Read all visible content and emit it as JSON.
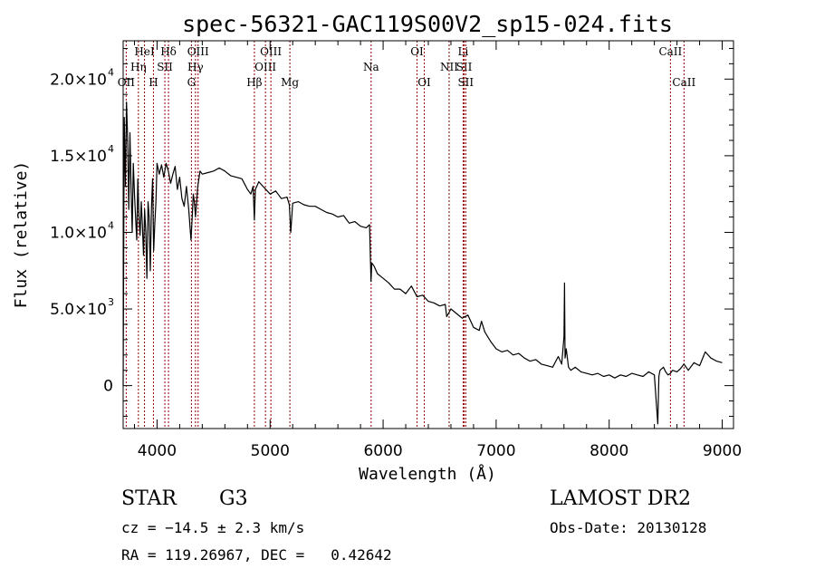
{
  "chart_data": {
    "type": "line",
    "title": "spec-56321-GAC119S00V2_sp15-024.fits",
    "xlabel": "Wavelength (Å)",
    "ylabel": "Flux (relative)",
    "xlim": [
      3700,
      9100
    ],
    "ylim": [
      -2800,
      22500
    ],
    "xticks": [
      4000,
      5000,
      6000,
      7000,
      8000,
      9000
    ],
    "xtick_labels": [
      "4000",
      "5000",
      "6000",
      "7000",
      "8000",
      "9000"
    ],
    "yticks": [
      0,
      5000,
      10000,
      15000,
      20000
    ],
    "ytick_labels": [
      {
        "base": "0",
        "exp": ""
      },
      {
        "base": "5.0×10",
        "exp": "3"
      },
      {
        "base": "1.0×10",
        "exp": "4"
      },
      {
        "base": "1.5×10",
        "exp": "4"
      },
      {
        "base": "2.0×10",
        "exp": "4"
      }
    ],
    "line_color": "#000000",
    "marker_color": "#8b0000",
    "spectrum": {
      "x": [
        3700,
        3710,
        3720,
        3730,
        3740,
        3750,
        3760,
        3770,
        3780,
        3790,
        3800,
        3810,
        3820,
        3830,
        3840,
        3850,
        3860,
        3870,
        3880,
        3890,
        3900,
        3910,
        3920,
        3930,
        3940,
        3950,
        3960,
        3970,
        3980,
        3990,
        4000,
        4020,
        4040,
        4060,
        4080,
        4100,
        4120,
        4140,
        4160,
        4180,
        4200,
        4220,
        4240,
        4260,
        4280,
        4300,
        4310,
        4320,
        4330,
        4340,
        4360,
        4380,
        4400,
        4450,
        4500,
        4550,
        4600,
        4650,
        4700,
        4750,
        4800,
        4830,
        4850,
        4861,
        4870,
        4900,
        4950,
        5000,
        5050,
        5100,
        5150,
        5170,
        5183,
        5200,
        5250,
        5300,
        5350,
        5400,
        5450,
        5500,
        5550,
        5600,
        5650,
        5700,
        5750,
        5800,
        5850,
        5880,
        5893,
        5900,
        5920,
        5950,
        6000,
        6050,
        6100,
        6150,
        6200,
        6250,
        6300,
        6350,
        6400,
        6450,
        6500,
        6550,
        6563,
        6600,
        6650,
        6700,
        6750,
        6800,
        6850,
        6870,
        6900,
        6950,
        7000,
        7050,
        7100,
        7150,
        7200,
        7250,
        7300,
        7350,
        7400,
        7450,
        7500,
        7550,
        7580,
        7600,
        7605,
        7610,
        7620,
        7640,
        7660,
        7700,
        7750,
        7800,
        7850,
        7900,
        7950,
        8000,
        8050,
        8100,
        8150,
        8200,
        8250,
        8300,
        8350,
        8400,
        8430,
        8440,
        8445,
        8450,
        8480,
        8500,
        8520,
        8542,
        8560,
        8600,
        8630,
        8662,
        8700,
        8750,
        8800,
        8850,
        8900,
        8950,
        9000
      ],
      "y": [
        0,
        17500,
        13000,
        18500,
        16000,
        11500,
        16500,
        13000,
        10000,
        14500,
        12500,
        11000,
        9500,
        13500,
        11000,
        9800,
        12000,
        10500,
        8500,
        11500,
        10000,
        7000,
        12000,
        11000,
        7500,
        11500,
        13500,
        8800,
        10500,
        12000,
        14500,
        13800,
        14400,
        13600,
        14500,
        14000,
        13200,
        13800,
        14300,
        12800,
        13600,
        12200,
        11700,
        13000,
        11500,
        9500,
        10800,
        12500,
        12000,
        11000,
        13000,
        14000,
        13800,
        13900,
        14000,
        14200,
        14000,
        13700,
        13600,
        13500,
        12800,
        12500,
        13000,
        10800,
        12800,
        13300,
        12900,
        12500,
        12700,
        12200,
        12300,
        11800,
        10000,
        11900,
        12000,
        11800,
        11700,
        11700,
        11500,
        11300,
        11200,
        11000,
        11100,
        10600,
        10700,
        10400,
        10300,
        10500,
        6800,
        8000,
        7800,
        7300,
        7000,
        6700,
        6300,
        6300,
        6000,
        6500,
        5800,
        5900,
        5500,
        5400,
        5200,
        5300,
        4500,
        5000,
        4700,
        4400,
        4600,
        3800,
        3600,
        4200,
        3500,
        2900,
        2400,
        2200,
        2300,
        2000,
        2100,
        1800,
        1600,
        1700,
        1400,
        1300,
        1200,
        1900,
        1400,
        3200,
        6700,
        1800,
        2400,
        1200,
        1000,
        1200,
        900,
        800,
        700,
        800,
        600,
        700,
        500,
        700,
        600,
        800,
        700,
        600,
        900,
        700,
        -2500,
        600,
        800,
        1000,
        1200,
        900,
        700,
        800,
        1000,
        900,
        1100,
        1400,
        1000,
        1500,
        1300,
        2200,
        1800,
        1600,
        1500
      ]
    },
    "line_markers": [
      {
        "label": "OII",
        "wave": 3727,
        "row": 3
      },
      {
        "label": "Hη",
        "wave": 3835,
        "row": 2
      },
      {
        "label": "HeI",
        "wave": 3889,
        "row": 1
      },
      {
        "label": "H",
        "wave": 3968,
        "row": 3
      },
      {
        "label": "SII",
        "wave": 4069,
        "row": 2
      },
      {
        "label": "Hδ",
        "wave": 4101,
        "row": 1
      },
      {
        "label": "G",
        "wave": 4304,
        "row": 3
      },
      {
        "label": "Hγ",
        "wave": 4340,
        "row": 2
      },
      {
        "label": "OIII",
        "wave": 4363,
        "row": 1
      },
      {
        "label": "Hβ",
        "wave": 4861,
        "row": 3
      },
      {
        "label": "OIII",
        "wave": 4959,
        "row": 2
      },
      {
        "label": "OIII",
        "wave": 5007,
        "row": 1
      },
      {
        "label": "Mg",
        "wave": 5175,
        "row": 3
      },
      {
        "label": "Na",
        "wave": 5894,
        "row": 2
      },
      {
        "label": "OI",
        "wave": 6300,
        "row": 1
      },
      {
        "label": "OI",
        "wave": 6364,
        "row": 3
      },
      {
        "label": "NII",
        "wave": 6584,
        "row": 2
      },
      {
        "label": "Li",
        "wave": 6708,
        "row": 1
      },
      {
        "label": "SII",
        "wave": 6717,
        "row": 2
      },
      {
        "label": "SII",
        "wave": 6731,
        "row": 3
      },
      {
        "label": "CaII",
        "wave": 8542,
        "row": 1
      },
      {
        "label": "CaII",
        "wave": 8662,
        "row": 3
      }
    ]
  },
  "info": {
    "object_class": "STAR",
    "subclass": "G3",
    "survey": "LAMOST DR2",
    "redshift_line": "cz = −14.5 ± 2.3 km/s",
    "obs_date_line": "Obs-Date: 20130128",
    "coords_line": "RA = 119.26967, DEC =   0.42642"
  }
}
